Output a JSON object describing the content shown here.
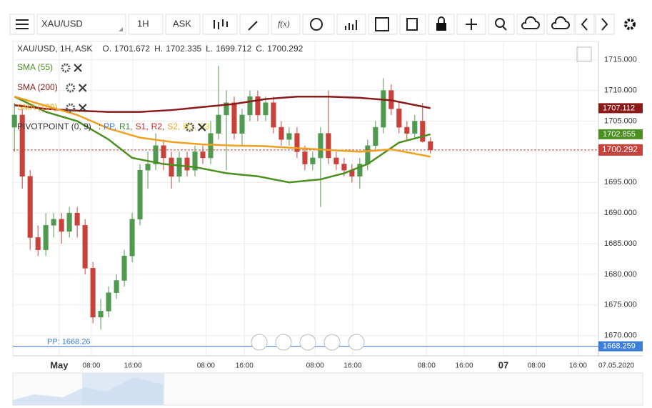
{
  "toolbar": {
    "symbol": "XAU/USD",
    "timeframe": "1H",
    "price_type": "ASK"
  },
  "chart_data": {
    "type": "candlestick",
    "header": "XAU/USD, 1H, ASK",
    "ohlc": [
      {
        "label": "O.",
        "value": 1701.672
      },
      {
        "label": "H.",
        "value": 1702.335
      },
      {
        "label": "L.",
        "value": 1699.712
      },
      {
        "label": "C.",
        "value": 1700.292
      }
    ],
    "up_color": "#4f9a4f",
    "down_color": "#c8423b",
    "candles": [
      [
        1704,
        1708,
        1700,
        1706
      ],
      [
        1706,
        1707,
        1694,
        1696
      ],
      [
        1696,
        1697,
        1684,
        1686
      ],
      [
        1686,
        1688,
        1683,
        1684
      ],
      [
        1684,
        1690,
        1683,
        1688
      ],
      [
        1688,
        1690,
        1686,
        1689
      ],
      [
        1689,
        1690,
        1685,
        1687
      ],
      [
        1687,
        1691,
        1686,
        1690
      ],
      [
        1690,
        1691,
        1686,
        1688
      ],
      [
        1688,
        1689,
        1680,
        1681
      ],
      [
        1681,
        1682,
        1672,
        1673
      ],
      [
        1673,
        1676,
        1671,
        1674
      ],
      [
        1674,
        1678,
        1673,
        1677
      ],
      [
        1677,
        1680,
        1676,
        1679
      ],
      [
        1679,
        1684,
        1678,
        1683
      ],
      [
        1683,
        1690,
        1682,
        1689
      ],
      [
        1689,
        1698,
        1688,
        1697
      ],
      [
        1697,
        1700,
        1694,
        1698
      ],
      [
        1698,
        1703,
        1697,
        1701
      ],
      [
        1701,
        1702,
        1697,
        1699
      ],
      [
        1699,
        1700,
        1694,
        1696
      ],
      [
        1696,
        1700,
        1695,
        1699
      ],
      [
        1699,
        1700,
        1696,
        1697
      ],
      [
        1697,
        1701,
        1696,
        1700
      ],
      [
        1700,
        1701,
        1698,
        1699
      ],
      [
        1699,
        1705,
        1698,
        1703
      ],
      [
        1703,
        1714,
        1702,
        1706
      ],
      [
        1706,
        1710,
        1697,
        1708
      ],
      [
        1708,
        1709,
        1702,
        1703
      ],
      [
        1703,
        1707,
        1701,
        1706
      ],
      [
        1706,
        1710,
        1705,
        1709
      ],
      [
        1709,
        1710,
        1705,
        1706
      ],
      [
        1706,
        1709,
        1705,
        1708
      ],
      [
        1708,
        1709,
        1703,
        1704
      ],
      [
        1704,
        1705,
        1701,
        1702
      ],
      [
        1702,
        1704,
        1701,
        1703
      ],
      [
        1703,
        1704,
        1699,
        1700
      ],
      [
        1700,
        1701,
        1697,
        1698
      ],
      [
        1698,
        1700,
        1697,
        1699
      ],
      [
        1699,
        1704,
        1691,
        1703
      ],
      [
        1703,
        1710,
        1698,
        1699
      ],
      [
        1699,
        1700,
        1697,
        1698
      ],
      [
        1698,
        1699,
        1696,
        1697
      ],
      [
        1697,
        1698,
        1695,
        1696
      ],
      [
        1696,
        1699,
        1694,
        1698
      ],
      [
        1698,
        1702,
        1697,
        1701
      ],
      [
        1701,
        1705,
        1700,
        1704
      ],
      [
        1704,
        1712,
        1703,
        1710
      ],
      [
        1710,
        1711,
        1706,
        1707
      ],
      [
        1707,
        1708,
        1703,
        1704
      ],
      [
        1704,
        1705,
        1702,
        1703
      ],
      [
        1703,
        1706,
        1702,
        1705
      ],
      [
        1705,
        1708,
        1701.5,
        1701.672
      ],
      [
        1701.672,
        1702.335,
        1699.712,
        1700.292
      ]
    ],
    "series": [
      {
        "name": "SMA (55)",
        "color": "#4a8f1f",
        "x": [
          0,
          4,
          8,
          12,
          15,
          19,
          23,
          27,
          31,
          35,
          39,
          42,
          45,
          49,
          53
        ],
        "values": [
          1709,
          1706.5,
          1705,
          1702,
          1699,
          1698,
          1697.5,
          1696.5,
          1696,
          1695,
          1695.5,
          1696.5,
          1698,
          1701.5,
          1702.855
        ],
        "last": 1702.855
      },
      {
        "name": "SMA (200)",
        "color": "#8b1a1a",
        "x": [
          0,
          4,
          8,
          12,
          16,
          20,
          24,
          28,
          32,
          36,
          40,
          44,
          48,
          53
        ],
        "values": [
          1707.6,
          1707,
          1706.7,
          1706.5,
          1706.5,
          1706.8,
          1707.3,
          1707.8,
          1708.6,
          1709,
          1709,
          1708.8,
          1708.4,
          1707.112
        ],
        "last": 1707.112
      },
      {
        "name": "SMA (100)",
        "color": "#f0a020",
        "x": [
          0,
          4,
          8,
          12,
          16,
          20,
          24,
          28,
          32,
          36,
          40,
          44,
          48,
          53
        ],
        "values": [
          1709,
          1707.5,
          1706,
          1703.8,
          1702.3,
          1701.6,
          1701.2,
          1701,
          1700.9,
          1700.6,
          1700.3,
          1700,
          1700.4,
          1699.2
        ]
      }
    ],
    "pivot_legend": {
      "name": "PIVOTPOINT (0, 9)",
      "separator": ":",
      "items": [
        {
          "text": "PP,",
          "color": "#3b7dd8"
        },
        {
          "text": "R1,",
          "color": "#2e8b2e"
        },
        {
          "text": "S1,",
          "color": "#cc2222"
        },
        {
          "text": "R2,",
          "color": "#cc2222"
        },
        {
          "text": "S2,",
          "color": "#f0a020"
        },
        {
          "text": "R3,",
          "color": "#e8d020"
        },
        {
          "text": "S3",
          "color": "#e8d020"
        }
      ]
    },
    "pp_label": "PP: 1668.26",
    "pp_value": 1668.259,
    "pp_color": "#3b7dd8",
    "current": 1700.292,
    "xlim": [
      -0.2,
      74.4
    ],
    "ylim": [
      1666.7,
      1718
    ],
    "yticks": [
      {
        "value": 1670,
        "label": "1670.000"
      },
      {
        "value": 1675,
        "label": "1675.000"
      },
      {
        "value": 1680,
        "label": "1680.000"
      },
      {
        "value": 1685,
        "label": "1685.000"
      },
      {
        "value": 1690,
        "label": "1690.000"
      },
      {
        "value": 1695,
        "label": "1695.000"
      },
      {
        "value": 1700,
        "label": "1700.000"
      },
      {
        "value": 1705,
        "label": "1705.000"
      },
      {
        "value": 1710,
        "label": "1710.000"
      },
      {
        "value": 1715,
        "label": "1715.000"
      }
    ],
    "xticks": [
      {
        "value": 5.7,
        "label": "May"
      },
      {
        "value": 9.8,
        "label": "08:00"
      },
      {
        "value": 15.1,
        "label": "16:00"
      },
      {
        "value": 24.4,
        "label": "08:00"
      },
      {
        "value": 29.3,
        "label": "16:00"
      },
      {
        "value": 38.3,
        "label": "08:00"
      },
      {
        "value": 43.1,
        "label": "16:00"
      },
      {
        "value": 52.5,
        "label": "08:00"
      },
      {
        "value": 57.3,
        "label": "16:00"
      },
      {
        "value": 62.3,
        "label": "07"
      },
      {
        "value": 66.5,
        "label": "08:00"
      },
      {
        "value": 71.8,
        "label": "16:00"
      }
    ],
    "date_label": "07.05.2020"
  }
}
